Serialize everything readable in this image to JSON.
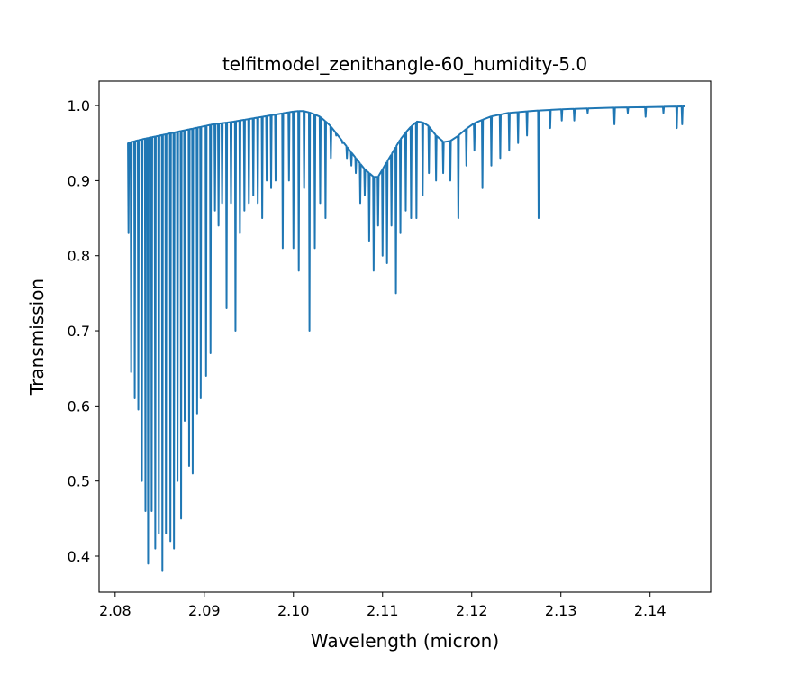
{
  "chart_data": {
    "type": "line",
    "title": "telfitmodel_zenithangle-60_humidity-5.0",
    "xlabel": "Wavelength (micron)",
    "ylabel": "Transmission",
    "xlim": [
      2.0782,
      2.1468
    ],
    "ylim": [
      0.352,
      1.0325
    ],
    "xticks": [
      "2.08",
      "2.09",
      "2.10",
      "2.11",
      "2.12",
      "2.13",
      "2.14"
    ],
    "yticks": [
      "0.4",
      "0.5",
      "0.6",
      "0.7",
      "0.8",
      "0.9",
      "1.0"
    ],
    "grid": false,
    "line_color": "#1f77b4",
    "series": [
      {
        "x_range": [
          2.0814,
          2.1439
        ],
        "continuum": [
          [
            2.0814,
            0.95
          ],
          [
            2.083,
            0.955
          ],
          [
            2.085,
            0.96
          ],
          [
            2.087,
            0.965
          ],
          [
            2.089,
            0.97
          ],
          [
            2.091,
            0.975
          ],
          [
            2.093,
            0.978
          ],
          [
            2.095,
            0.982
          ],
          [
            2.097,
            0.986
          ],
          [
            2.099,
            0.99
          ],
          [
            2.1,
            0.992
          ],
          [
            2.101,
            0.993
          ],
          [
            2.102,
            0.99
          ],
          [
            2.103,
            0.985
          ],
          [
            2.104,
            0.975
          ],
          [
            2.105,
            0.96
          ],
          [
            2.106,
            0.945
          ],
          [
            2.107,
            0.93
          ],
          [
            2.108,
            0.915
          ],
          [
            2.109,
            0.905
          ],
          [
            2.1095,
            0.905
          ],
          [
            2.11,
            0.915
          ],
          [
            2.111,
            0.935
          ],
          [
            2.112,
            0.955
          ],
          [
            2.113,
            0.97
          ],
          [
            2.114,
            0.98
          ],
          [
            2.115,
            0.975
          ],
          [
            2.116,
            0.96
          ],
          [
            2.117,
            0.95
          ],
          [
            2.118,
            0.955
          ],
          [
            2.119,
            0.965
          ],
          [
            2.12,
            0.975
          ],
          [
            2.121,
            0.98
          ],
          [
            2.122,
            0.985
          ],
          [
            2.124,
            0.99
          ],
          [
            2.127,
            0.993
          ],
          [
            2.13,
            0.995
          ],
          [
            2.135,
            0.997
          ],
          [
            2.14,
            0.998
          ],
          [
            2.1439,
            0.999
          ]
        ],
        "lines": [
          [
            2.0815,
            0.83
          ],
          [
            2.0818,
            0.645
          ],
          [
            2.0822,
            0.61
          ],
          [
            2.0826,
            0.595
          ],
          [
            2.083,
            0.5
          ],
          [
            2.0834,
            0.46
          ],
          [
            2.0837,
            0.39
          ],
          [
            2.0841,
            0.46
          ],
          [
            2.0845,
            0.41
          ],
          [
            2.0849,
            0.43
          ],
          [
            2.0853,
            0.38
          ],
          [
            2.0857,
            0.43
          ],
          [
            2.0862,
            0.42
          ],
          [
            2.0866,
            0.41
          ],
          [
            2.087,
            0.5
          ],
          [
            2.0874,
            0.45
          ],
          [
            2.0878,
            0.58
          ],
          [
            2.0883,
            0.52
          ],
          [
            2.0887,
            0.51
          ],
          [
            2.0892,
            0.59
          ],
          [
            2.0896,
            0.61
          ],
          [
            2.0902,
            0.64
          ],
          [
            2.0907,
            0.67
          ],
          [
            2.0912,
            0.86
          ],
          [
            2.0916,
            0.84
          ],
          [
            2.092,
            0.87
          ],
          [
            2.0925,
            0.73
          ],
          [
            2.093,
            0.87
          ],
          [
            2.0935,
            0.7
          ],
          [
            2.094,
            0.83
          ],
          [
            2.0945,
            0.86
          ],
          [
            2.095,
            0.87
          ],
          [
            2.0955,
            0.88
          ],
          [
            2.096,
            0.87
          ],
          [
            2.0965,
            0.85
          ],
          [
            2.097,
            0.9
          ],
          [
            2.0975,
            0.89
          ],
          [
            2.098,
            0.9
          ],
          [
            2.0988,
            0.81
          ],
          [
            2.0995,
            0.9
          ],
          [
            2.1,
            0.81
          ],
          [
            2.1006,
            0.78
          ],
          [
            2.1012,
            0.89
          ],
          [
            2.1018,
            0.7
          ],
          [
            2.1024,
            0.81
          ],
          [
            2.103,
            0.87
          ],
          [
            2.1036,
            0.85
          ],
          [
            2.1042,
            0.93
          ],
          [
            2.1048,
            0.96
          ],
          [
            2.1055,
            0.95
          ],
          [
            2.106,
            0.93
          ],
          [
            2.1065,
            0.92
          ],
          [
            2.107,
            0.91
          ],
          [
            2.1075,
            0.87
          ],
          [
            2.108,
            0.88
          ],
          [
            2.1085,
            0.82
          ],
          [
            2.109,
            0.78
          ],
          [
            2.1095,
            0.84
          ],
          [
            2.11,
            0.8
          ],
          [
            2.1105,
            0.79
          ],
          [
            2.111,
            0.84
          ],
          [
            2.1115,
            0.75
          ],
          [
            2.112,
            0.83
          ],
          [
            2.1126,
            0.86
          ],
          [
            2.1132,
            0.85
          ],
          [
            2.1138,
            0.85
          ],
          [
            2.1145,
            0.88
          ],
          [
            2.1152,
            0.91
          ],
          [
            2.116,
            0.9
          ],
          [
            2.1168,
            0.91
          ],
          [
            2.1176,
            0.9
          ],
          [
            2.1185,
            0.85
          ],
          [
            2.1194,
            0.92
          ],
          [
            2.1203,
            0.94
          ],
          [
            2.1212,
            0.89
          ],
          [
            2.1222,
            0.92
          ],
          [
            2.1232,
            0.93
          ],
          [
            2.1242,
            0.94
          ],
          [
            2.1252,
            0.95
          ],
          [
            2.1262,
            0.96
          ],
          [
            2.1275,
            0.85
          ],
          [
            2.1288,
            0.97
          ],
          [
            2.1301,
            0.98
          ],
          [
            2.1315,
            0.98
          ],
          [
            2.133,
            0.99
          ],
          [
            2.136,
            0.975
          ],
          [
            2.1375,
            0.99
          ],
          [
            2.1395,
            0.985
          ],
          [
            2.1415,
            0.99
          ],
          [
            2.143,
            0.97
          ],
          [
            2.1436,
            0.975
          ]
        ]
      }
    ]
  }
}
